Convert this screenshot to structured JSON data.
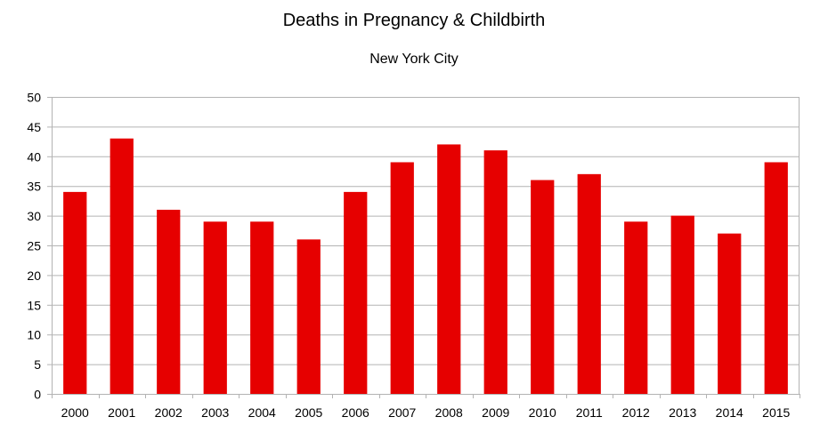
{
  "chart_data": {
    "type": "bar",
    "title": "Deaths in Pregnancy & Childbirth",
    "subtitle": "New York City",
    "xlabel": "",
    "ylabel": "",
    "categories": [
      "2000",
      "2001",
      "2002",
      "2003",
      "2004",
      "2005",
      "2006",
      "2007",
      "2008",
      "2009",
      "2010",
      "2011",
      "2012",
      "2013",
      "2014",
      "2015"
    ],
    "values": [
      34,
      43,
      31,
      29,
      29,
      26,
      34,
      39,
      42,
      41,
      36,
      37,
      29,
      30,
      27,
      39
    ],
    "ylim": [
      0,
      50
    ],
    "yticks": [
      0,
      5,
      10,
      15,
      20,
      25,
      30,
      35,
      40,
      45,
      50
    ],
    "grid": true,
    "legend": "none",
    "bar_color": "#e60000"
  }
}
